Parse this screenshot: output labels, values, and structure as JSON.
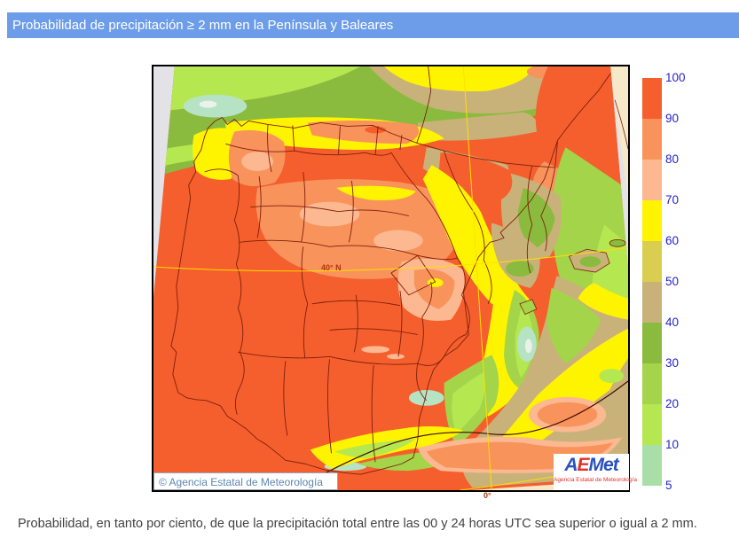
{
  "header": {
    "title": "Probabilidad de precipitación ≥ 2 mm en la Península y Baleares",
    "bg_color": "#6D9DE8"
  },
  "map": {
    "copyright": "© Agencia Estatal de Meteorología",
    "logo": {
      "l1": "A",
      "l2": "E",
      "l3": "M",
      "l4": "e",
      "l5": "t",
      "subtitle": "Agencia Estatal de Meteorología"
    },
    "grid_labels": {
      "latitude": "40° N",
      "longitude": "0°"
    },
    "sea_color": "#E3E2E7",
    "outside_domain_color": "#F6E8C8"
  },
  "legend": {
    "values": [
      "100",
      "90",
      "80",
      "70",
      "60",
      "50",
      "40",
      "30",
      "20",
      "10",
      "5"
    ],
    "colors": [
      "#F55F2D",
      "#F9935C",
      "#FCB890",
      "#FFF400",
      "#D9CE4F",
      "#C9B279",
      "#8ABB3E",
      "#A3D44A",
      "#B5E750",
      "#A9DFA6"
    ]
  },
  "caption": "Probabilidad, en tanto por ciento, de que la precipitación total entre las 00 y 24 horas UTC sea superior o igual a 2 mm."
}
